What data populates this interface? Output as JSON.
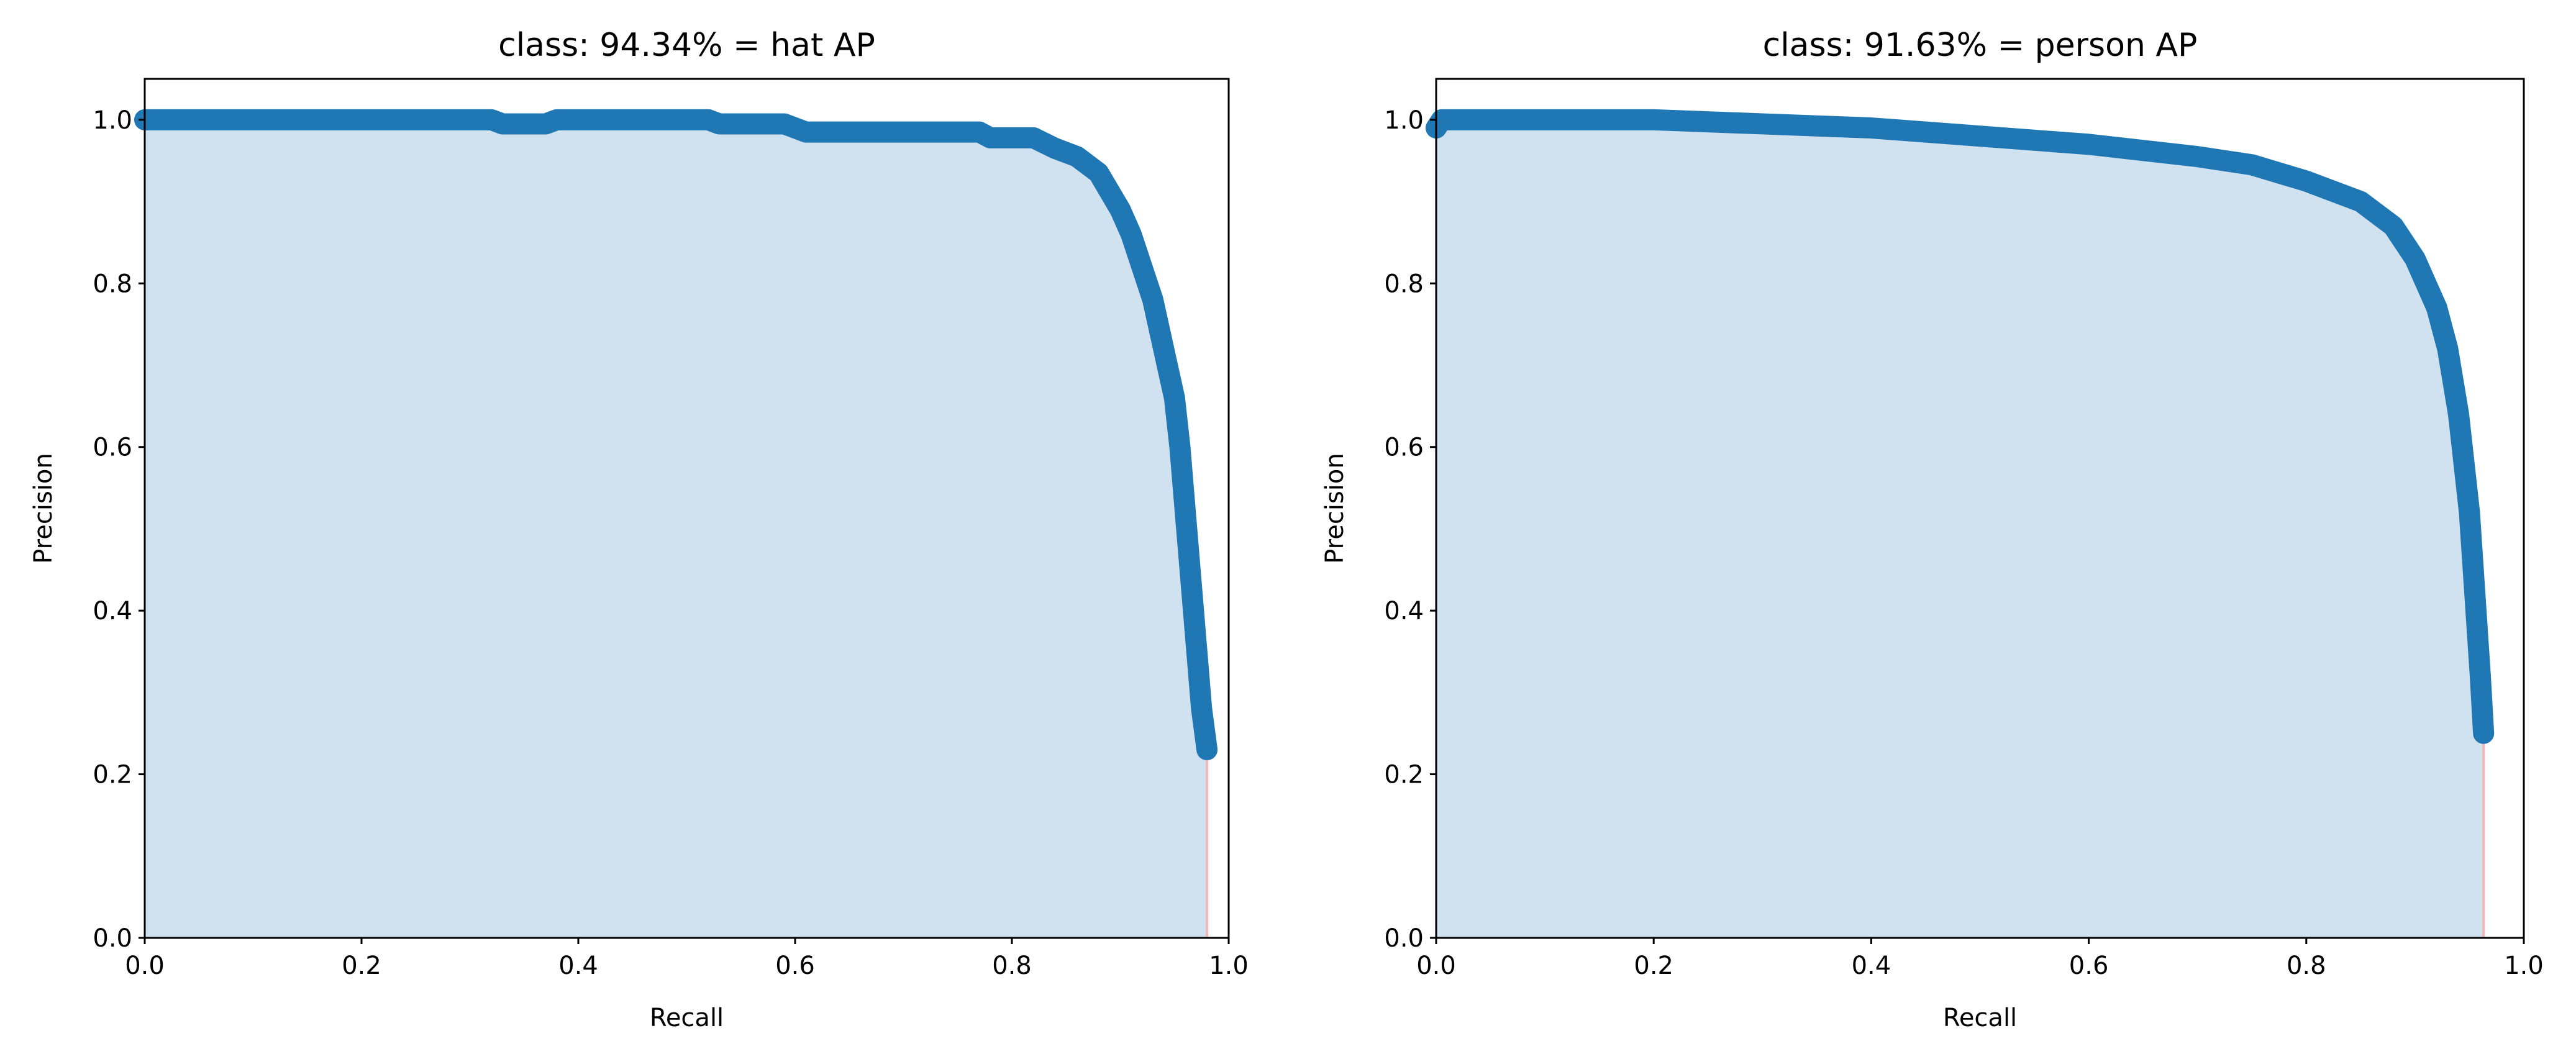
{
  "chart_data": [
    {
      "type": "line",
      "title": "class: 94.34% = hat AP",
      "xlabel": "Recall",
      "ylabel": "Precision",
      "x": [
        0,
        0.32,
        0.33,
        0.37,
        0.38,
        0.52,
        0.53,
        0.59,
        0.61,
        0.77,
        0.78,
        0.82,
        0.84,
        0.86,
        0.88,
        0.9,
        0.91,
        0.92,
        0.93,
        0.94,
        0.95,
        0.955,
        0.96,
        0.965,
        0.97,
        0.975,
        0.98
      ],
      "values": [
        1.0,
        1.0,
        0.995,
        0.995,
        1.0,
        1.0,
        0.995,
        0.995,
        0.985,
        0.985,
        0.978,
        0.978,
        0.965,
        0.955,
        0.935,
        0.89,
        0.86,
        0.82,
        0.78,
        0.72,
        0.66,
        0.6,
        0.52,
        0.44,
        0.36,
        0.28,
        0.23
      ],
      "color": "#1f77b4",
      "fill_color": "#d0e1ef",
      "edge_color": "#f4b6b6",
      "xlim": [
        0,
        1
      ],
      "ylim": [
        0,
        1.05
      ],
      "xticks": [
        {
          "value": 0,
          "label": "0.0"
        },
        0.2,
        0.4,
        0.6,
        0.8,
        {
          "value": 1,
          "label": "1.0"
        }
      ],
      "yticks": [
        {
          "value": 0,
          "label": "0.0"
        },
        0.2,
        0.4,
        0.6,
        0.8,
        {
          "value": 1,
          "label": "1.0"
        }
      ]
    },
    {
      "type": "line",
      "title": "class: 91.63% = person AP",
      "xlabel": "Recall",
      "ylabel": "Precision",
      "x": [
        0,
        0.005,
        0.2,
        0.3,
        0.4,
        0.5,
        0.6,
        0.7,
        0.75,
        0.8,
        0.85,
        0.88,
        0.9,
        0.92,
        0.93,
        0.94,
        0.95,
        0.955,
        0.96,
        0.963
      ],
      "values": [
        0.99,
        1.0,
        1.0,
        0.995,
        0.99,
        0.98,
        0.97,
        0.955,
        0.945,
        0.925,
        0.9,
        0.87,
        0.83,
        0.77,
        0.72,
        0.64,
        0.52,
        0.42,
        0.32,
        0.25
      ],
      "color": "#1f77b4",
      "fill_color": "#d0e1ef",
      "edge_color": "#f4b6b6",
      "xlim": [
        0,
        1
      ],
      "ylim": [
        0,
        1.05
      ],
      "xticks": [
        {
          "value": 0,
          "label": "0.0"
        },
        0.2,
        0.4,
        0.6,
        0.8,
        {
          "value": 1,
          "label": "1.0"
        }
      ],
      "yticks": [
        {
          "value": 0,
          "label": "0.0"
        },
        0.2,
        0.4,
        0.6,
        0.8,
        {
          "value": 1,
          "label": "1.0"
        }
      ]
    }
  ]
}
